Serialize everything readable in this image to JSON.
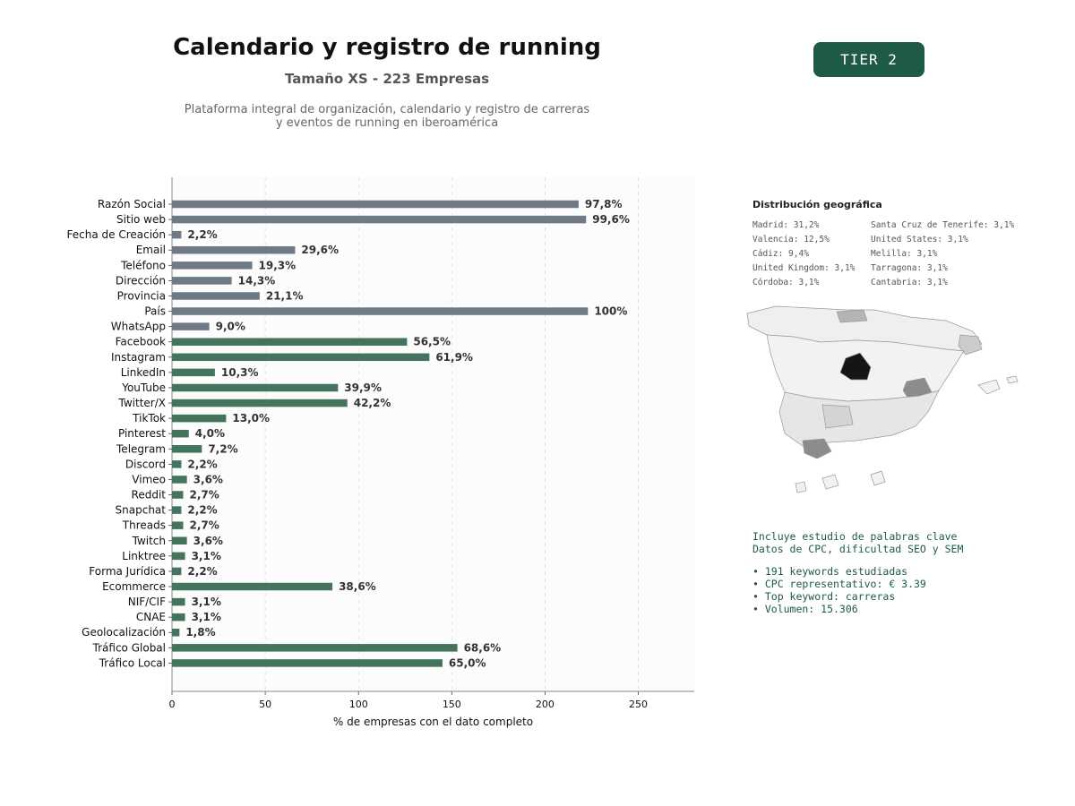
{
  "header": {
    "title": "Calendario y registro de running",
    "subtitle": "Tamaño XS - 223 Empresas",
    "description_line1": "Plataforma integral de organización, calendario y registro de carreras",
    "description_line2": "y eventos de running en iberoamérica",
    "tier_badge": "TIER 2"
  },
  "chart_data": {
    "type": "bar",
    "orientation": "horizontal",
    "categories": [
      "Razón Social",
      "Sitio web",
      "Fecha de Creación",
      "Email",
      "Teléfono",
      "Dirección",
      "Provincia",
      "País",
      "WhatsApp",
      "Facebook",
      "Instagram",
      "LinkedIn",
      "YouTube",
      "Twitter/X",
      "TikTok",
      "Pinterest",
      "Telegram",
      "Discord",
      "Vimeo",
      "Reddit",
      "Snapchat",
      "Threads",
      "Twitch",
      "Linktree",
      "Forma Jurídica",
      "Ecommerce",
      "NIF/CIF",
      "CNAE",
      "Geolocalización",
      "Tráfico Global",
      "Tráfico Local"
    ],
    "values": [
      218,
      222,
      5,
      66,
      43,
      32,
      47,
      223,
      20,
      126,
      138,
      23,
      89,
      94,
      29,
      9,
      16,
      5,
      8,
      6,
      5,
      6,
      8,
      7,
      5,
      86,
      7,
      7,
      4,
      153,
      145
    ],
    "labels": [
      "97,8%",
      "99,6%",
      "2,2%",
      "29,6%",
      "19,3%",
      "14,3%",
      "21,1%",
      "100%",
      "9,0%",
      "56,5%",
      "61,9%",
      "10,3%",
      "39,9%",
      "42,2%",
      "13,0%",
      "4,0%",
      "7,2%",
      "2,2%",
      "3,6%",
      "2,7%",
      "2,2%",
      "2,7%",
      "3,6%",
      "3,1%",
      "2,2%",
      "38,6%",
      "3,1%",
      "3,1%",
      "1,8%",
      "68,6%",
      "65,0%"
    ],
    "bar_colors": [
      "#707a84",
      "#707a84",
      "#707a84",
      "#707a84",
      "#707a84",
      "#707a84",
      "#707a84",
      "#707a84",
      "#707a84",
      "#44735e",
      "#44735e",
      "#44735e",
      "#44735e",
      "#44735e",
      "#44735e",
      "#44735e",
      "#44735e",
      "#44735e",
      "#44735e",
      "#44735e",
      "#44735e",
      "#44735e",
      "#44735e",
      "#44735e",
      "#44735e",
      "#44735e",
      "#44735e",
      "#44735e",
      "#44735e",
      "#44735e",
      "#44735e"
    ],
    "xlabel": "% de empresas con el dato completo",
    "ylabel": "",
    "xlim": [
      0,
      280
    ],
    "xticks": [
      0,
      50,
      100,
      150,
      200,
      250
    ],
    "grid": "vertical dashed",
    "legend": "none"
  },
  "geo": {
    "title": "Distribución geográfica",
    "items": [
      "Madrid: 31,2%",
      "Santa Cruz de Tenerife: 3,1%",
      "Valencia: 12,5%",
      "United States: 3,1%",
      "Cádiz: 9,4%",
      "Melilla: 3,1%",
      "United Kingdom: 3,1%",
      "Tarragona: 3,1%",
      "Córdoba: 3,1%",
      "Cantabria: 3,1%"
    ]
  },
  "keywords": {
    "line1": "Incluye estudio de palabras clave",
    "line2": "Datos de CPC, dificultad SEO y SEM",
    "bullet1": "• 191 keywords estudiadas",
    "bullet2": "• CPC representativo: € 3.39",
    "bullet3": "• Top keyword: carreras",
    "bullet4": "• Volumen: 15.306"
  },
  "colors": {
    "accent": "#1e5a45",
    "bar_gray": "#707a84",
    "bar_green": "#44735e"
  }
}
